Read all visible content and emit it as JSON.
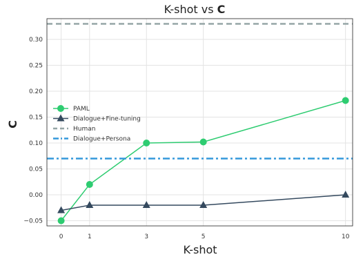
{
  "chart_data": {
    "type": "line",
    "title_prefix": "K-shot vs ",
    "title_metric": "C",
    "xlabel": "K-shot",
    "ylabel": "C",
    "x": [
      0,
      1,
      3,
      5,
      10
    ],
    "x_ticks": [
      0,
      1,
      3,
      5,
      10
    ],
    "x_tick_labels": [
      "0",
      "1",
      "3",
      "5",
      "10"
    ],
    "xlim": [
      -0.5,
      10.25
    ],
    "ylim": [
      -0.06,
      0.34
    ],
    "y_ticks": [
      -0.05,
      0.0,
      0.05,
      0.1,
      0.15,
      0.2,
      0.25,
      0.3
    ],
    "y_tick_labels": [
      "−0.05",
      "0.00",
      "0.05",
      "0.10",
      "0.15",
      "0.20",
      "0.25",
      "0.30"
    ],
    "grid": true,
    "legend_position": "center-left",
    "series": [
      {
        "name": "PAML",
        "values": [
          -0.05,
          0.02,
          0.1,
          0.102,
          0.182
        ],
        "color": "#2ecc71",
        "style": "solid",
        "marker": "circle"
      },
      {
        "name": "Dialogue+Fine-tuning",
        "values": [
          -0.03,
          -0.02,
          -0.02,
          -0.02,
          0.0
        ],
        "color": "#34495e",
        "style": "solid",
        "marker": "triangle"
      },
      {
        "name": "Human",
        "constant": 0.33,
        "color": "#95a5a6",
        "style": "dashed",
        "marker": "none"
      },
      {
        "name": "Dialogue+Persona",
        "constant": 0.07,
        "color": "#3498db",
        "style": "dashdot",
        "marker": "none"
      }
    ]
  }
}
